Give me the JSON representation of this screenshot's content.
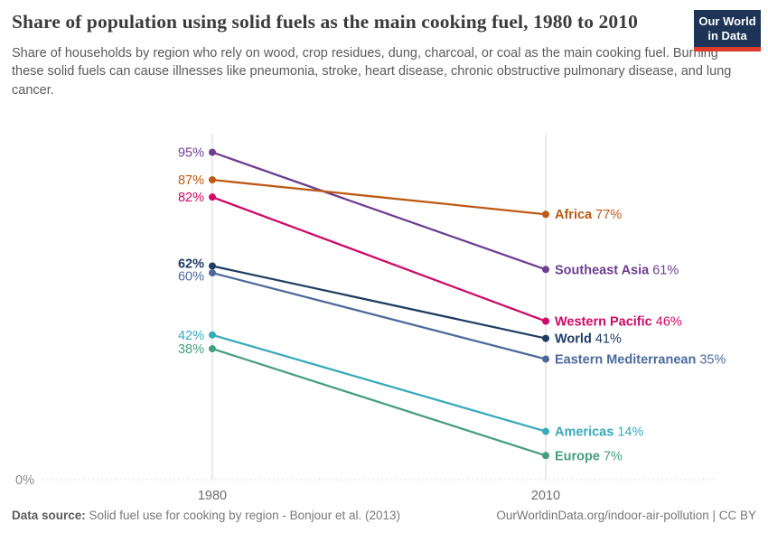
{
  "header": {
    "title": "Share of population using solid fuels as the main cooking fuel, 1980 to 2010",
    "subtitle": "Share of households by region who rely on wood, crop residues, dung, charcoal, or coal as the main cooking fuel. Burning these solid fuels can cause illnesses like pneumonia, stroke, heart disease, chronic obstructive pulmonary disease, and lung cancer.",
    "logo": {
      "line1": "Our World",
      "line2": "in Data",
      "bg_color": "#1d3456",
      "accent_color": "#dc3b2e"
    }
  },
  "chart_data": {
    "type": "line",
    "variant": "slope",
    "title": "Share of population using solid fuels as the main cooking fuel, 1980 to 2010",
    "x": [
      1980,
      2010
    ],
    "x_tick_labels": [
      "1980",
      "2010"
    ],
    "xlabel": "",
    "ylabel": "",
    "ylim": [
      0,
      100
    ],
    "baseline_label": "0%",
    "grid": {
      "vertical_year_lines": true,
      "dashed_zero_baseline": true,
      "legend": "inline-right"
    },
    "axis_colors": {
      "line": "#d6d6d6",
      "dashed": "#dcdcdc",
      "tick_text": "#6e6e6e",
      "baseline_text": "#8a8a8a"
    },
    "series": [
      {
        "name": "Southeast Asia",
        "values": [
          95,
          61
        ],
        "color": "#6d3e91",
        "bold": false
      },
      {
        "name": "Africa",
        "values": [
          87,
          77
        ],
        "color": "#be5915",
        "bold": false
      },
      {
        "name": "Western Pacific",
        "values": [
          82,
          46
        ],
        "color": "#cf0a66",
        "bold": false
      },
      {
        "name": "World",
        "values": [
          62,
          41
        ],
        "color": "#1d3d63",
        "bold": true
      },
      {
        "name": "Eastern Mediterranean",
        "values": [
          60,
          35
        ],
        "color": "#4c6a9c",
        "bold": false
      },
      {
        "name": "Americas",
        "values": [
          42,
          14
        ],
        "color": "#38aaba",
        "bold": false
      },
      {
        "name": "Europe",
        "values": [
          38,
          7
        ],
        "color": "#459e7c",
        "bold": false
      }
    ]
  },
  "footer": {
    "datasource_label": "Data source:",
    "datasource_text": " Solid fuel use for cooking by region - Bonjour et al. (2013)",
    "credit": "OurWorldinData.org/indoor-air-pollution | CC BY"
  }
}
